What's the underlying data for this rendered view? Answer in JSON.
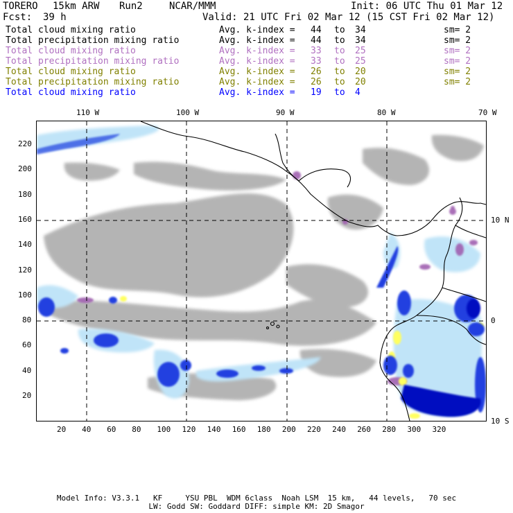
{
  "header": {
    "model": "TORERO",
    "resolution": "15km ARW",
    "run": "Run2",
    "org": "NCAR/MMM",
    "init": "Init: 06 UTC Thu 01 Mar 12",
    "fcst_label": "Fcst:",
    "fcst_value": "39 h",
    "valid": "Valid: 21 UTC Fri 02 Mar 12 (15 CST Fri 02 Mar 12)"
  },
  "variables": [
    {
      "name": "Total cloud mixing ratio",
      "k_label": "Avg. k-index =",
      "k_from": "44",
      "to": "to",
      "k_to": "34",
      "sm": "sm= 2",
      "color": "#000000"
    },
    {
      "name": "Total precipitation mixing ratio",
      "k_label": "Avg. k-index =",
      "k_from": "44",
      "to": "to",
      "k_to": "34",
      "sm": "sm= 2",
      "color": "#000000"
    },
    {
      "name": "Total cloud mixing ratio",
      "k_label": "Avg. k-index =",
      "k_from": "33",
      "to": "to",
      "k_to": "25",
      "sm": "sm= 2",
      "color": "#b070c0"
    },
    {
      "name": "Total precipitation mixing ratio",
      "k_label": "Avg. k-index =",
      "k_from": "33",
      "to": "to",
      "k_to": "25",
      "sm": "sm= 2",
      "color": "#b070c0"
    },
    {
      "name": "Total cloud mixing ratio",
      "k_label": "Avg. k-index =",
      "k_from": "26",
      "to": "to",
      "k_to": "20",
      "sm": "sm= 2",
      "color": "#808000"
    },
    {
      "name": "Total precipitation mixing ratio",
      "k_label": "Avg. k-index =",
      "k_from": "26",
      "to": "to",
      "k_to": "20",
      "sm": "sm= 2",
      "color": "#808000"
    },
    {
      "name": "Total cloud mixing ratio",
      "k_label": "Avg. k-index =",
      "k_from": "19",
      "to": "to",
      "k_to": "4",
      "sm": "",
      "color": "#0000ff"
    }
  ],
  "map": {
    "lon_labels": [
      "110 W",
      "100 W",
      "90 W",
      "80 W",
      "70 W"
    ],
    "lat_labels": [
      "10 N",
      "0",
      "10 S"
    ],
    "grid_x_labels": [
      "20",
      "40",
      "60",
      "80",
      "100",
      "120",
      "140",
      "160",
      "180",
      "200",
      "220",
      "240",
      "260",
      "280",
      "300",
      "320"
    ],
    "grid_y_labels": [
      "20",
      "40",
      "60",
      "80",
      "100",
      "120",
      "140",
      "160",
      "180",
      "200",
      "220"
    ],
    "colors": {
      "gray": "#a8a8a8",
      "purple": "#a060b0",
      "yellow": "#ffff60",
      "lightblue": "#c0e4f8",
      "blue": "#2040e0",
      "darkblue": "#0010c0"
    }
  },
  "footer": {
    "line1": "Model Info: V3.3.1   KF     YSU PBL  WDM 6class  Noah LSM  15 km,   44 levels,   70 sec",
    "line2": "LW: Godd SW: Goddard DIFF: simple KM: 2D Smagor"
  }
}
